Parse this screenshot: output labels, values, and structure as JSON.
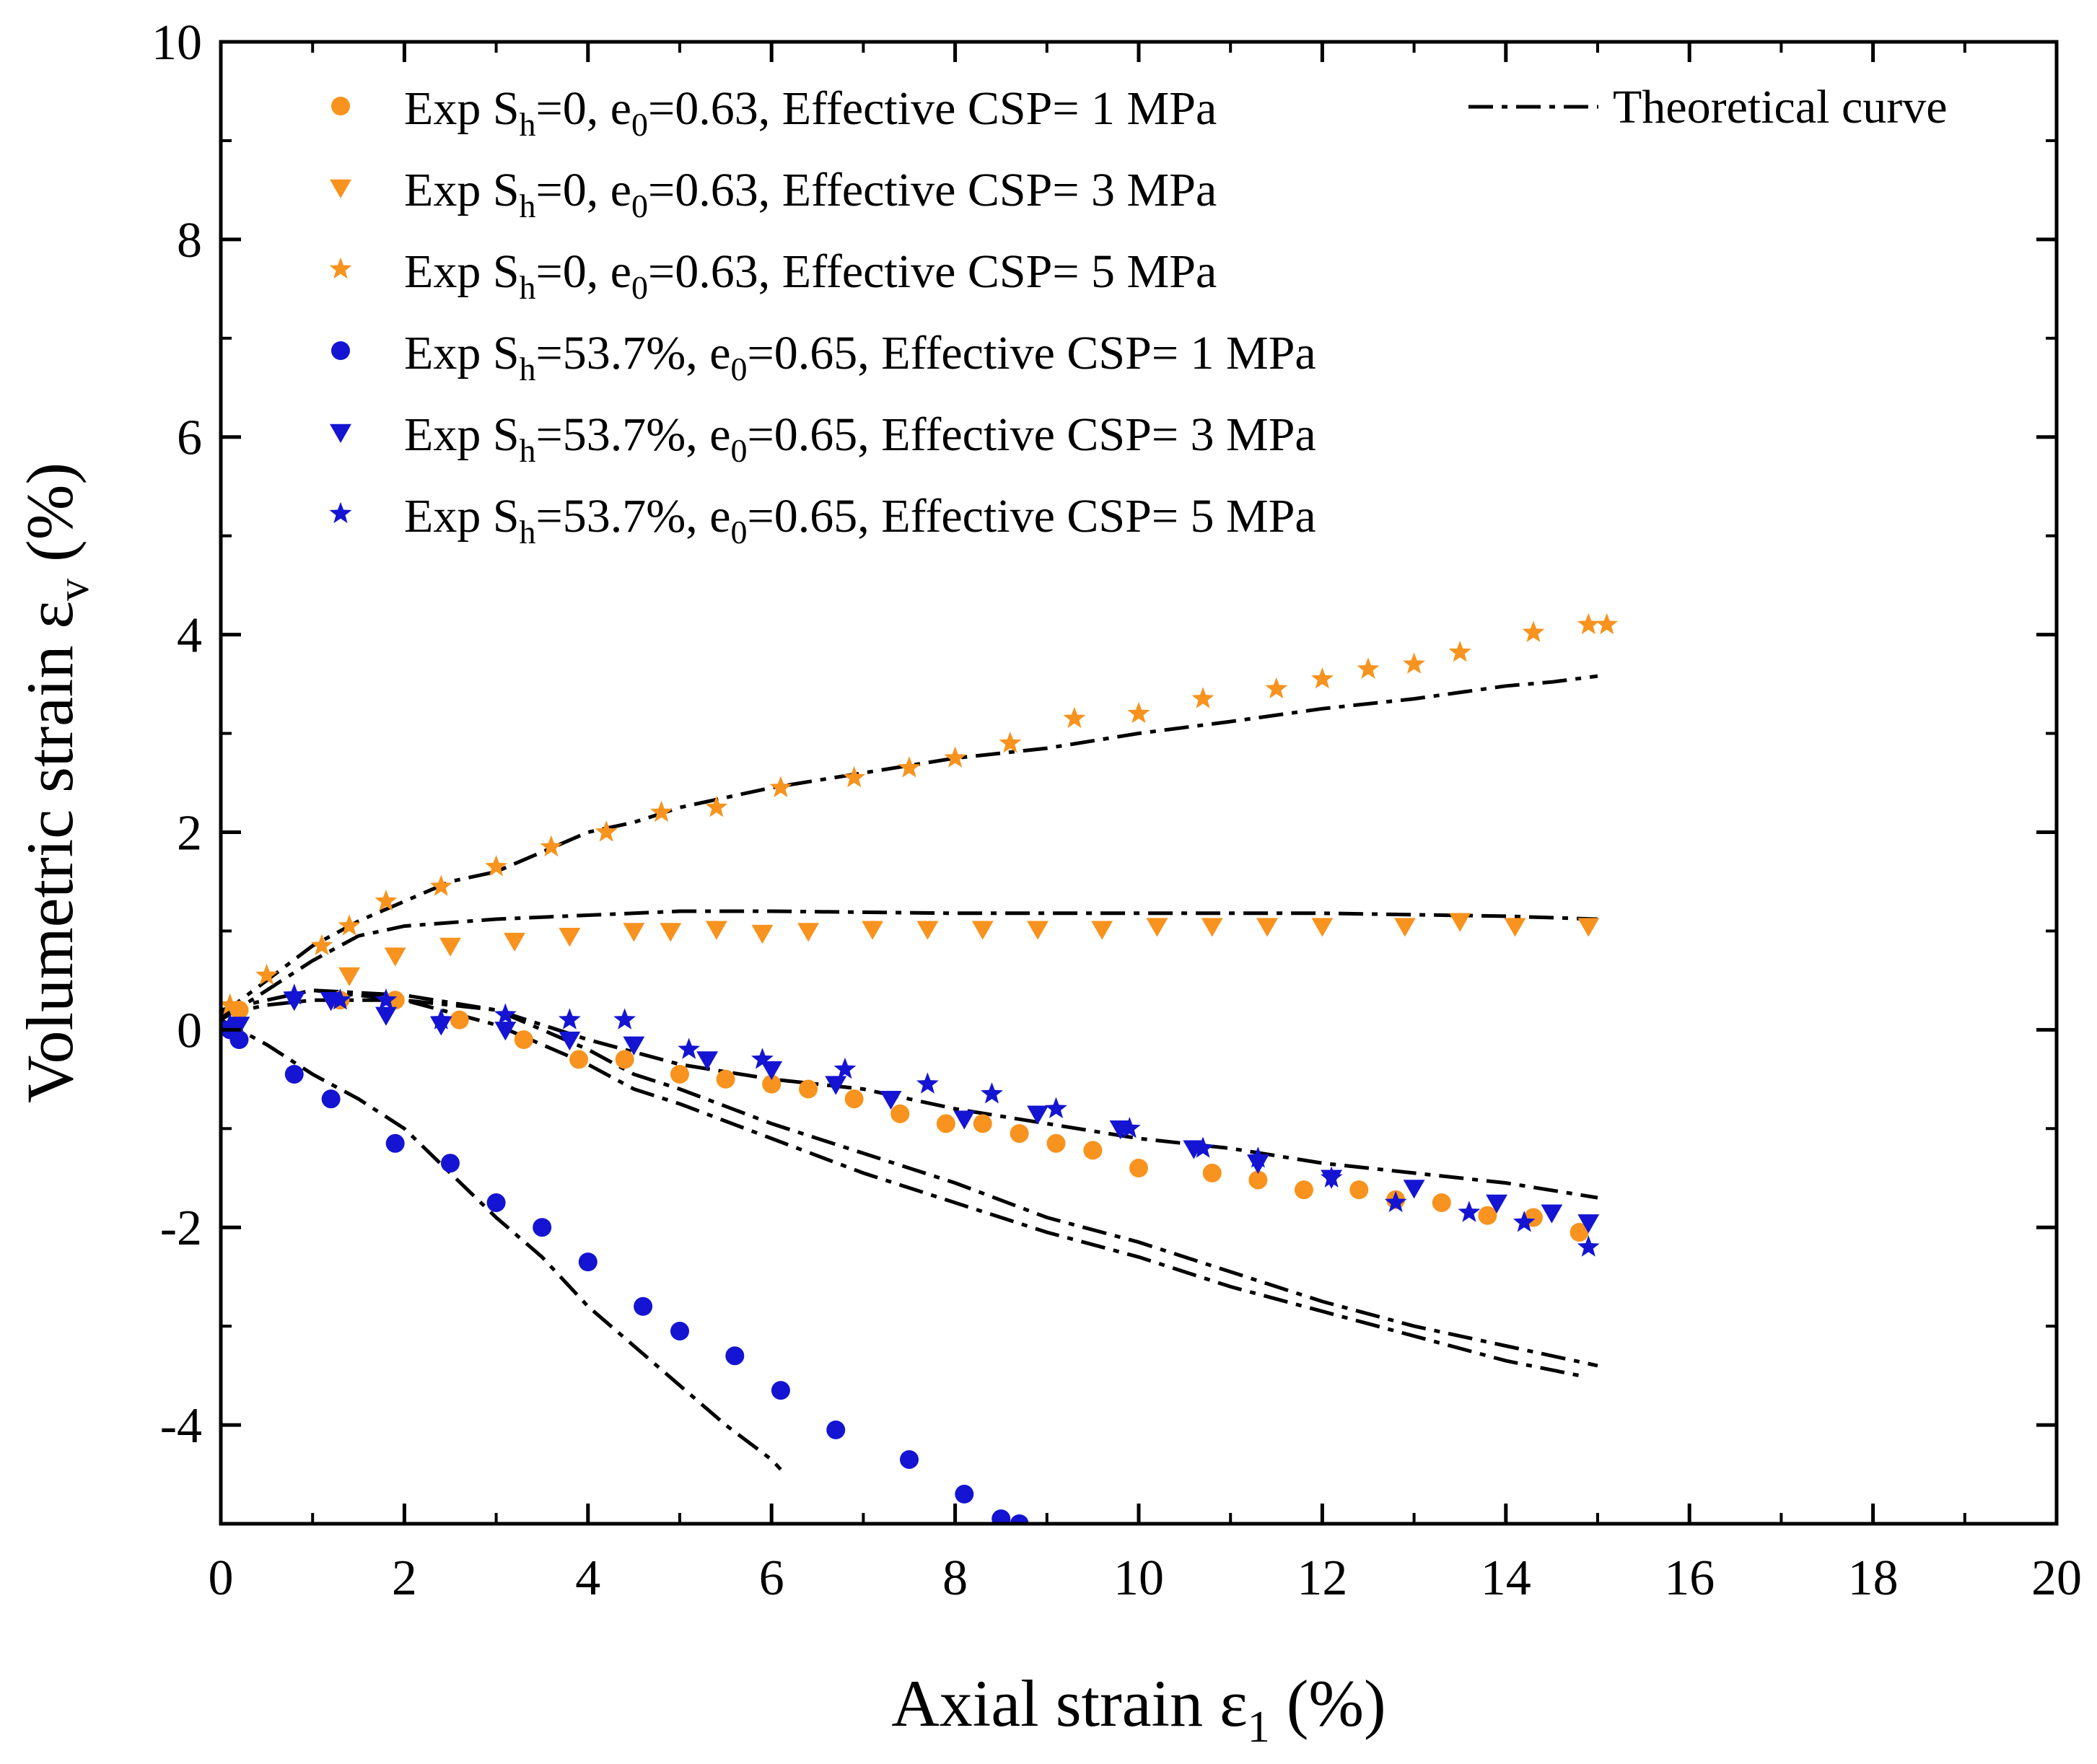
{
  "chart_data": {
    "type": "scatter",
    "xlabel": {
      "main": "Axial strain ε",
      "sub": "1",
      "unit": " (%)"
    },
    "ylabel": {
      "main": "Volumetric strain ε",
      "sub": "v",
      "unit": " (%)"
    },
    "xlim": [
      0,
      20
    ],
    "ylim": [
      -5,
      10
    ],
    "xticks": [
      0,
      2,
      4,
      6,
      8,
      10,
      12,
      14,
      16,
      18,
      20
    ],
    "yticks": [
      -4,
      -2,
      0,
      2,
      4,
      6,
      8,
      10
    ],
    "legend_position": "top-left",
    "grid": false,
    "series": [
      {
        "name": "Exp Sh=0, e0=0.63, Effective CSP= 1 MPa",
        "label": {
          "a": "Exp S",
          "b": "h",
          "c": "=0, e",
          "d": "0",
          "e": "=0.63, Effective CSP= 1 MPa"
        },
        "marker": "circle",
        "color": "#F7931E",
        "x": [
          0.2,
          1.3,
          1.9,
          2.6,
          3.3,
          3.9,
          4.4,
          5.0,
          5.5,
          6.0,
          6.4,
          6.9,
          7.4,
          7.9,
          8.3,
          8.7,
          9.1,
          9.5,
          10.0,
          10.8,
          11.3,
          11.8,
          12.4,
          12.8,
          13.3,
          13.8,
          14.3,
          14.8
        ],
        "y": [
          0.2,
          0.3,
          0.3,
          0.1,
          -0.1,
          -0.3,
          -0.3,
          -0.45,
          -0.5,
          -0.55,
          -0.6,
          -0.7,
          -0.85,
          -0.95,
          -0.95,
          -1.05,
          -1.15,
          -1.22,
          -1.4,
          -1.45,
          -1.52,
          -1.62,
          -1.62,
          -1.72,
          -1.75,
          -1.88,
          -1.9,
          -2.05
        ]
      },
      {
        "name": "Exp Sh=0, e0=0.63, Effective CSP= 3 MPa",
        "label": {
          "a": "Exp S",
          "b": "h",
          "c": "=0, e",
          "d": "0",
          "e": "=0.63, Effective CSP= 3 MPa"
        },
        "marker": "triangle-down",
        "color": "#F7931E",
        "x": [
          1.4,
          1.9,
          2.5,
          3.2,
          3.8,
          4.5,
          4.9,
          5.4,
          5.9,
          6.4,
          7.1,
          7.7,
          8.3,
          8.9,
          9.6,
          10.2,
          10.8,
          11.4,
          12.0,
          12.9,
          13.5,
          14.1,
          14.9
        ],
        "y": [
          0.55,
          0.75,
          0.85,
          0.9,
          0.95,
          1.0,
          1.0,
          1.02,
          0.98,
          1.0,
          1.02,
          1.02,
          1.02,
          1.02,
          1.02,
          1.05,
          1.05,
          1.05,
          1.05,
          1.05,
          1.1,
          1.05,
          1.05
        ]
      },
      {
        "name": "Exp Sh=0, e0=0.63, Effective CSP= 5 MPa",
        "label": {
          "a": "Exp S",
          "b": "h",
          "c": "=0, e",
          "d": "0",
          "e": "=0.63, Effective CSP= 5 MPa"
        },
        "marker": "star",
        "color": "#F7931E",
        "x": [
          0.1,
          0.5,
          1.1,
          1.4,
          1.8,
          2.4,
          3.0,
          3.6,
          4.2,
          4.8,
          5.4,
          6.1,
          6.9,
          7.5,
          8.0,
          8.6,
          9.3,
          10.0,
          10.7,
          11.5,
          12.0,
          12.5,
          13.0,
          13.5,
          14.3,
          14.9,
          15.1
        ],
        "y": [
          0.25,
          0.55,
          0.85,
          1.05,
          1.3,
          1.45,
          1.65,
          1.85,
          2.0,
          2.2,
          2.25,
          2.45,
          2.55,
          2.65,
          2.75,
          2.9,
          3.15,
          3.2,
          3.35,
          3.45,
          3.55,
          3.65,
          3.7,
          3.82,
          4.02,
          4.1,
          4.1
        ]
      },
      {
        "name": "Exp Sh=53.7%, e0=0.65, Effective CSP= 1 MPa",
        "label": {
          "a": "Exp S",
          "b": "h",
          "c": "=53.7%, e",
          "d": "0",
          "e": "=0.65, Effective CSP= 1 MPa"
        },
        "marker": "circle",
        "color": "#1414D2",
        "x": [
          0.1,
          0.2,
          0.8,
          1.2,
          1.9,
          2.5,
          3.0,
          3.5,
          4.0,
          4.6,
          5.0,
          5.6,
          6.1,
          6.7,
          7.5,
          8.1,
          8.5,
          8.7
        ],
        "y": [
          0.0,
          -0.1,
          -0.45,
          -0.7,
          -1.15,
          -1.35,
          -1.75,
          -2.0,
          -2.35,
          -2.8,
          -3.05,
          -3.3,
          -3.65,
          -4.05,
          -4.35,
          -4.7,
          -4.95,
          -5.0
        ]
      },
      {
        "name": "Exp Sh=53.7%, e0=0.65, Effective CSP= 3 MPa",
        "label": {
          "a": "Exp S",
          "b": "h",
          "c": "=53.7%, e",
          "d": "0",
          "e": "=0.65, Effective CSP= 3 MPa"
        },
        "marker": "triangle-down",
        "color": "#1414D2",
        "x": [
          0.2,
          0.8,
          1.2,
          1.8,
          2.4,
          3.1,
          3.8,
          4.5,
          5.3,
          6.0,
          6.7,
          7.3,
          8.1,
          8.9,
          9.8,
          10.6,
          11.3,
          12.1,
          13.0,
          13.9,
          14.5,
          14.9
        ],
        "y": [
          0.05,
          0.3,
          0.3,
          0.15,
          0.05,
          0.0,
          -0.1,
          -0.15,
          -0.3,
          -0.4,
          -0.55,
          -0.7,
          -0.9,
          -0.85,
          -1.0,
          -1.2,
          -1.35,
          -1.5,
          -1.6,
          -1.75,
          -1.85,
          -1.95
        ]
      },
      {
        "name": "Exp Sh=53.7%, e0=0.65, Effective CSP= 5 MPa",
        "label": {
          "a": "Exp S",
          "b": "h",
          "c": "=53.7%, e",
          "d": "0",
          "e": "=0.65, Effective CSP= 5 MPa"
        },
        "marker": "star",
        "color": "#1414D2",
        "x": [
          0.1,
          0.8,
          1.3,
          1.8,
          2.4,
          3.1,
          3.8,
          4.4,
          5.1,
          5.9,
          6.8,
          7.7,
          8.4,
          9.1,
          9.9,
          10.7,
          11.3,
          12.1,
          12.8,
          13.6,
          14.2,
          14.9
        ],
        "y": [
          0.05,
          0.35,
          0.3,
          0.3,
          0.1,
          0.15,
          0.1,
          0.1,
          -0.2,
          -0.3,
          -0.4,
          -0.55,
          -0.65,
          -0.8,
          -1.0,
          -1.2,
          -1.3,
          -1.5,
          -1.75,
          -1.85,
          -1.95,
          -2.2
        ]
      }
    ],
    "theoretical_curves": {
      "name": "Theoretical curve",
      "style": "dash-dot",
      "color": "#000000",
      "curves": [
        {
          "x": [
            0,
            0.5,
            1.0,
            1.5,
            2.0,
            2.5,
            3.0,
            3.5,
            4.0,
            4.5,
            5.0,
            6.0,
            7.0,
            8.0,
            9.0,
            10.0,
            11.0,
            12.0,
            13.0,
            14.0,
            14.5,
            15.0
          ],
          "y": [
            0.15,
            0.5,
            0.85,
            1.1,
            1.3,
            1.5,
            1.6,
            1.8,
            2.0,
            2.1,
            2.25,
            2.45,
            2.6,
            2.75,
            2.85,
            3.0,
            3.12,
            3.25,
            3.35,
            3.48,
            3.52,
            3.58
          ]
        },
        {
          "x": [
            0,
            0.5,
            1.0,
            1.5,
            2.0,
            3.0,
            4.0,
            5.0,
            6.0,
            8.0,
            10.0,
            12.0,
            14.0,
            15.0
          ],
          "y": [
            0.1,
            0.4,
            0.7,
            0.95,
            1.05,
            1.12,
            1.16,
            1.2,
            1.2,
            1.18,
            1.18,
            1.18,
            1.15,
            1.12
          ]
        },
        {
          "x": [
            0,
            0.5,
            1.0,
            2.0,
            3.0,
            4.0,
            5.0,
            6.0,
            7.0,
            8.0,
            9.0,
            10.0,
            11.0,
            12.0,
            13.0,
            14.0,
            15.0
          ],
          "y": [
            0.2,
            0.3,
            0.4,
            0.35,
            0.2,
            -0.1,
            -0.35,
            -0.5,
            -0.6,
            -0.8,
            -0.95,
            -1.1,
            -1.2,
            -1.35,
            -1.45,
            -1.55,
            -1.7
          ]
        },
        {
          "x": [
            0,
            0.5,
            1.0,
            2.0,
            3.0,
            4.0,
            4.5,
            5.0,
            6.0,
            7.0,
            8.0,
            9.0,
            10.0,
            11.0,
            12.0,
            13.0,
            14.0,
            15.0
          ],
          "y": [
            0.2,
            0.3,
            0.4,
            0.3,
            0.2,
            -0.2,
            -0.45,
            -0.6,
            -0.95,
            -1.25,
            -1.55,
            -1.9,
            -2.15,
            -2.45,
            -2.75,
            -3.0,
            -3.2,
            -3.4
          ]
        },
        {
          "x": [
            0,
            0.5,
            1.0,
            2.0,
            3.0,
            4.0,
            4.5,
            5.0,
            6.0,
            7.0,
            8.0,
            9.0,
            10.0,
            11.0,
            12.0,
            13.0,
            14.0,
            14.8
          ],
          "y": [
            0.15,
            0.25,
            0.3,
            0.3,
            0.05,
            -0.35,
            -0.6,
            -0.75,
            -1.1,
            -1.45,
            -1.75,
            -2.05,
            -2.3,
            -2.6,
            -2.85,
            -3.1,
            -3.35,
            -3.5
          ]
        },
        {
          "x": [
            0,
            0.5,
            1.0,
            1.5,
            2.0,
            2.5,
            3.0,
            3.5,
            4.0,
            4.5,
            5.0,
            5.5,
            6.0,
            6.1
          ],
          "y": [
            0.1,
            -0.15,
            -0.45,
            -0.7,
            -1.0,
            -1.45,
            -1.9,
            -2.3,
            -2.8,
            -3.2,
            -3.6,
            -4.0,
            -4.35,
            -4.45
          ]
        }
      ]
    }
  }
}
